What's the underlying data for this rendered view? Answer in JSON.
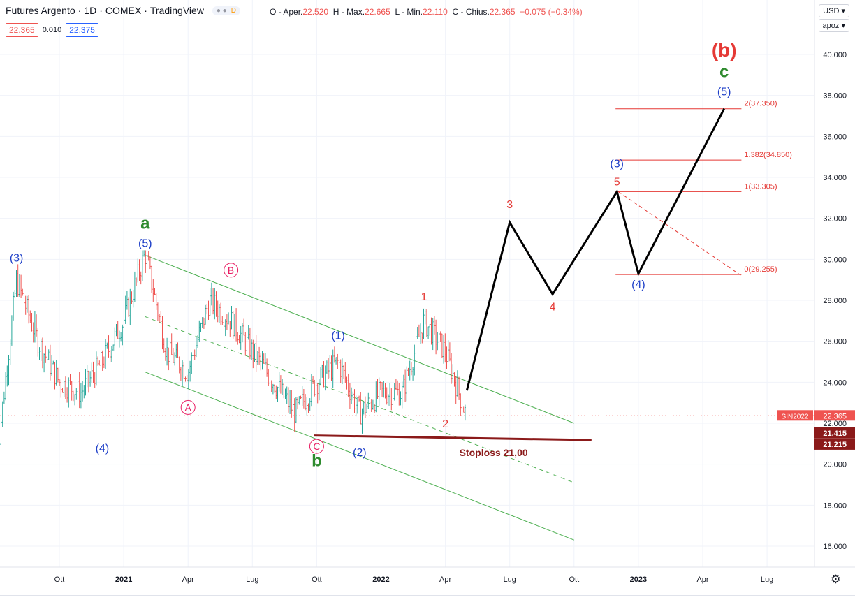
{
  "header": {
    "symbol_name": "Futures Argento",
    "interval": "1D",
    "exchange": "COMEX",
    "platform": "TradingView",
    "badge_letter": "D",
    "ohlc": {
      "open_label": "O - Aper.",
      "open": "22.520",
      "high_label": "H - Max.",
      "high": "22.665",
      "low_label": "L - Min.",
      "low": "22.110",
      "close_label": "C - Chius.",
      "close": "22.365",
      "change": "−0.075 (−0.34%)"
    },
    "bid": "22.365",
    "spread": "0.010",
    "ask": "22.375"
  },
  "controls": {
    "currency": "USD",
    "currency_icon": "chevron-down-icon",
    "scale_mode": "apoz",
    "scale_icon": "chevron-down-icon",
    "settings_icon": "gear-icon"
  },
  "colors": {
    "up": "#26a69a",
    "down": "#ef5350",
    "channel": "#4caf50",
    "fib": "#e53935",
    "wave_blue": "#1e3fc8",
    "wave_green": "#2e8b2e",
    "stoploss": "#8b1a1a"
  },
  "chart_data": {
    "type": "line",
    "title": "Futures Argento · 1D · COMEX",
    "ylim": [
      15.0,
      41.5
    ],
    "y_ticks": [
      "16.000",
      "18.000",
      "20.000",
      "22.000",
      "24.000",
      "26.000",
      "28.000",
      "30.000",
      "32.000",
      "34.000",
      "36.000",
      "38.000",
      "40.000"
    ],
    "x_ticks": [
      "Ott",
      "2021",
      "Apr",
      "Lug",
      "Ott",
      "2022",
      "Apr",
      "Lug",
      "Ott",
      "2023",
      "Apr",
      "Lug"
    ],
    "grid": true,
    "series": [
      {
        "role": "daily price (approx, sampled)",
        "x": [
          "2020-07",
          "2020-08",
          "2020-09",
          "2020-10",
          "2020-11",
          "2020-12",
          "2021-01",
          "2021-02",
          "2021-03",
          "2021-04",
          "2021-05",
          "2021-06",
          "2021-07",
          "2021-08",
          "2021-09",
          "2021-10",
          "2021-11",
          "2021-12",
          "2022-01",
          "2022-02",
          "2022-03",
          "2022-04",
          "2022-05"
        ],
        "values": [
          19.5,
          29.0,
          26.0,
          24.0,
          23.5,
          25.0,
          27.0,
          30.3,
          25.5,
          24.5,
          28.0,
          27.0,
          25.5,
          24.0,
          22.5,
          24.0,
          25.0,
          22.5,
          23.5,
          23.5,
          27.0,
          25.5,
          22.3
        ]
      },
      {
        "role": "projected wave path",
        "x": [
          "2022-05",
          "2022-07",
          "2022-09",
          "2022-12",
          "2023-01",
          "2023-05"
        ],
        "values": [
          23.6,
          31.8,
          28.3,
          33.3,
          29.3,
          37.35
        ]
      }
    ],
    "price_labels": [
      {
        "label": "SIN2022",
        "value": "22.365"
      },
      {
        "value": "21.415"
      },
      {
        "value": "21.215"
      }
    ],
    "fib_levels": [
      {
        "label": "2(37.350)",
        "value": 37.35
      },
      {
        "label": "1.382(34.850)",
        "value": 34.85
      },
      {
        "label": "1(33.305)",
        "value": 33.305
      },
      {
        "label": "0(29.255)",
        "value": 29.255
      }
    ],
    "stoploss": {
      "label": "Stoploss 21,00",
      "value": 21.0
    },
    "annotations": [
      {
        "text": "(3)",
        "x": "2020-08",
        "y": 29.9
      },
      {
        "text": "(4)",
        "x": "2020-12",
        "y": 20.6
      },
      {
        "text": "a",
        "x": "2021-02",
        "y": 31.5
      },
      {
        "text": "(5)",
        "x": "2021-02",
        "y": 30.6
      },
      {
        "text": "A",
        "x": "2021-04",
        "y": 22.6
      },
      {
        "text": "B",
        "x": "2021-06",
        "y": 29.3
      },
      {
        "text": "C",
        "x": "2021-10",
        "y": 20.7
      },
      {
        "text": "b",
        "x": "2021-10",
        "y": 19.9
      },
      {
        "text": "(1)",
        "x": "2021-11",
        "y": 26.1
      },
      {
        "text": "(2)",
        "x": "2021-12",
        "y": 20.4
      },
      {
        "text": "1",
        "x": "2022-03",
        "y": 28.0
      },
      {
        "text": "2",
        "x": "2022-04",
        "y": 21.8
      },
      {
        "text": "3",
        "x": "2022-07",
        "y": 32.5
      },
      {
        "text": "4",
        "x": "2022-09",
        "y": 27.5
      },
      {
        "text": "(3)",
        "x": "2022-12",
        "y": 34.5
      },
      {
        "text": "5",
        "x": "2022-12",
        "y": 33.6
      },
      {
        "text": "(4)",
        "x": "2023-01",
        "y": 28.6
      },
      {
        "text": "(5)",
        "x": "2023-05",
        "y": 38.0
      },
      {
        "text": "c",
        "x": "2023-05",
        "y": 38.9
      },
      {
        "text": "(b)",
        "x": "2023-05",
        "y": 39.9
      }
    ]
  }
}
